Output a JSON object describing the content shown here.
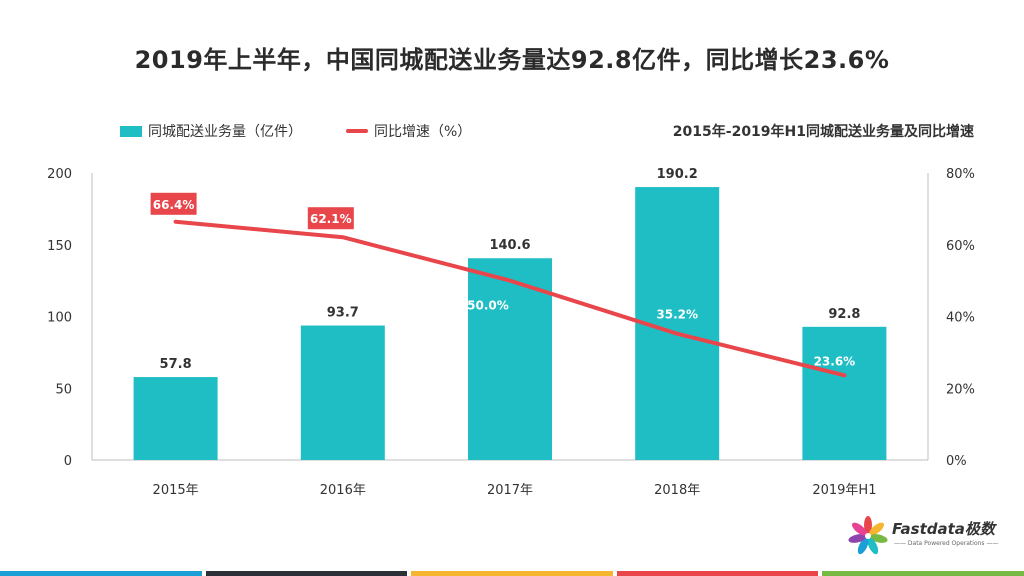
{
  "title": "2019年上半年，中国同城配送业务量达92.8亿件，同比增长23.6%",
  "subtitle": "2015年-2019年H1同城配送业务量及同比增速",
  "legend": {
    "bar_label": "同城配送业务量（亿件）",
    "line_label": "同比增速（%）"
  },
  "logo": {
    "brand": "Fastdata极数",
    "tagline": "—— Data Powered Operations ——"
  },
  "colors": {
    "bar": "#1fbdc4",
    "line": "#e8464a",
    "label_bg": "#e8464a",
    "footer": [
      "#1a9fd6",
      "#2b3137",
      "#f5b52e",
      "#e8464a",
      "#78b943"
    ]
  },
  "chart_data": {
    "type": "bar",
    "categories": [
      "2015年",
      "2016年",
      "2017年",
      "2018年",
      "2019年H1"
    ],
    "series": [
      {
        "name": "同城配送业务量（亿件）",
        "type": "bar",
        "axis": "left",
        "values": [
          57.8,
          93.7,
          140.6,
          190.2,
          92.8
        ],
        "labels": [
          "57.8",
          "93.7",
          "140.6",
          "190.2",
          "92.8"
        ]
      },
      {
        "name": "同比增速（%）",
        "type": "line",
        "axis": "right",
        "values": [
          66.4,
          62.1,
          50.0,
          35.2,
          23.6
        ],
        "labels": [
          "66.4%",
          "62.1%",
          "50.0%",
          "35.2%",
          "23.6%"
        ]
      }
    ],
    "ylim_left": [
      0,
      200
    ],
    "yticks_left": [
      "0",
      "50",
      "100",
      "150",
      "200"
    ],
    "ylim_right": [
      0,
      80
    ],
    "yticks_right": [
      "0%",
      "20%",
      "40%",
      "60%",
      "80%"
    ],
    "grid": false,
    "legend_position": "top-left"
  }
}
